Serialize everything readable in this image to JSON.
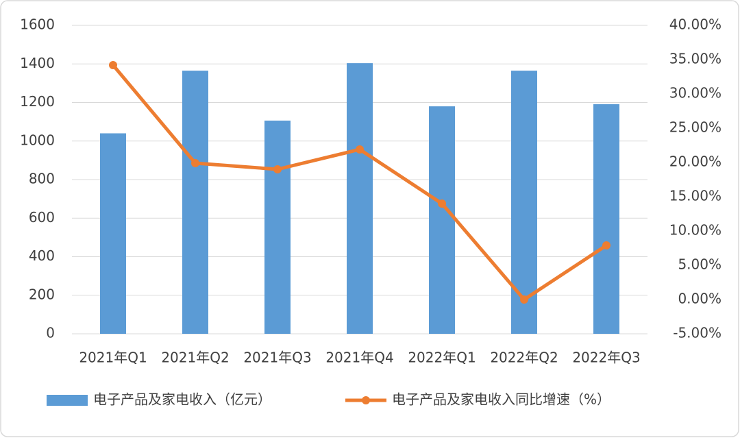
{
  "chart_data": {
    "type": "bar_line",
    "categories": [
      "2021年Q1",
      "2021年Q2",
      "2021年Q3",
      "2021年Q4",
      "2022年Q1",
      "2022年Q2",
      "2022年Q3"
    ],
    "series": [
      {
        "name": "电子产品及家电收入（亿元）",
        "type": "bar",
        "color": "#5b9bd5",
        "values": [
          1040,
          1365,
          1106,
          1404,
          1180,
          1365,
          1191
        ]
      },
      {
        "name": "电子产品及家电收入同比增速（%）",
        "type": "line",
        "axis": "y2",
        "color": "#ed7d31",
        "values": [
          34.2,
          19.9,
          19.0,
          21.9,
          14.0,
          0.0,
          7.9
        ]
      }
    ],
    "ylim": [
      0,
      1600
    ],
    "yticks": [
      0,
      200,
      400,
      600,
      800,
      1000,
      1200,
      1400,
      1600
    ],
    "y2lim": [
      -5,
      40
    ],
    "y2ticks": [
      {
        "value": -5,
        "label": "-5.00%"
      },
      {
        "value": 0,
        "label": "0.00%"
      },
      {
        "value": 5,
        "label": "5.00%"
      },
      {
        "value": 10,
        "label": "10.00%"
      },
      {
        "value": 15,
        "label": "15.00%"
      },
      {
        "value": 20,
        "label": "20.00%"
      },
      {
        "value": 25,
        "label": "25.00%"
      },
      {
        "value": 30,
        "label": "30.00%"
      },
      {
        "value": 35,
        "label": "35.00%"
      },
      {
        "value": 40,
        "label": "40.00%"
      }
    ],
    "grid": true,
    "legend": "bottom"
  }
}
